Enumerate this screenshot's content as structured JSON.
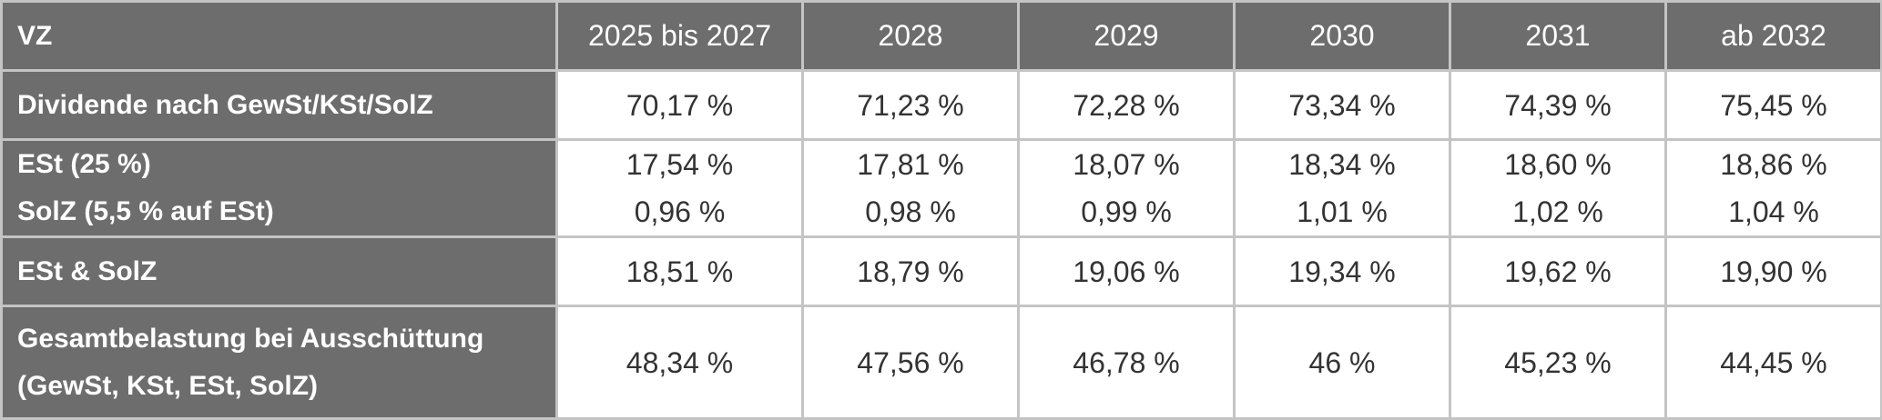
{
  "table": {
    "corner_label": "VZ",
    "years": [
      "2025 bis 2027",
      "2028",
      "2029",
      "2030",
      "2031",
      "ab 2032"
    ],
    "rows": {
      "dividende": {
        "label": "Dividende nach GewSt/KSt/SolZ",
        "values": [
          "70,17 %",
          "71,23 %",
          "72,28 %",
          "73,34 %",
          "74,39 %",
          "75,45 %"
        ]
      },
      "est": {
        "label": "ESt (25 %)",
        "values": [
          "17,54 %",
          "17,81 %",
          "18,07 %",
          "18,34 %",
          "18,60 %",
          "18,86 %"
        ]
      },
      "solz": {
        "label": "SolZ (5,5 % auf ESt)",
        "values": [
          "0,96 %",
          "0,98 %",
          "0,99 %",
          "1,01 %",
          "1,02 %",
          "1,04 %"
        ]
      },
      "est_solz": {
        "label": "ESt & SolZ",
        "values": [
          "18,51 %",
          "18,79 %",
          "19,06 %",
          "19,34 %",
          "19,62 %",
          "19,90 %"
        ]
      },
      "gesamt": {
        "label_line1": "Gesamtbelastung bei Ausschüttung",
        "label_line2": "(GewSt, KSt, ESt, SolZ)",
        "values": [
          "48,34 %",
          "47,56 %",
          "46,78 %",
          "46 %",
          "45,23 %",
          "44,45 %"
        ]
      }
    },
    "colors": {
      "header_bg": "#6d6d6d",
      "header_text": "#ffffff",
      "cell_bg": "#ffffff",
      "cell_text": "#333333",
      "border": "#c4c4c4"
    }
  }
}
